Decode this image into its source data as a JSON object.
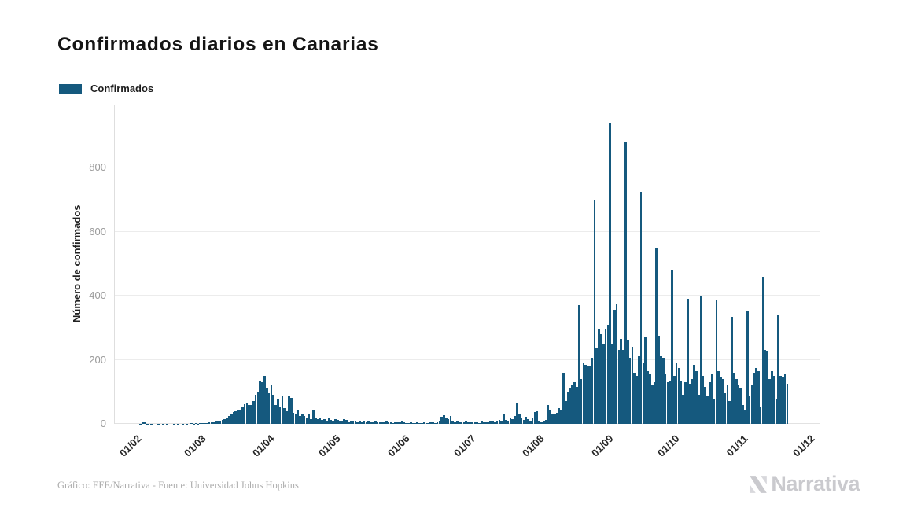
{
  "title": "Confirmados diarios en Canarias",
  "legend": {
    "label": "Confirmados",
    "color": "#15597e"
  },
  "footer": "Gráfico: EFE/Narrativa - Fuente: Universidad Johns Hopkins",
  "logo_text": "Narrativa",
  "chart_data": {
    "type": "bar",
    "title": "Confirmados diarios en Canarias",
    "ylabel": "Número de confirmados",
    "xlabel": "",
    "series_name": "Confirmados",
    "bar_color": "#15597e",
    "grid": "horizontal",
    "legend_position": "top-left",
    "y_ticks": [
      0,
      200,
      400,
      600,
      800
    ],
    "ylim": [
      0,
      960
    ],
    "x_tick_labels": [
      "01/02",
      "01/03",
      "01/04",
      "01/05",
      "01/06",
      "01/07",
      "01/08",
      "01/09",
      "01/10",
      "01/11",
      "01/12"
    ],
    "month_start_indices": [
      0,
      29,
      60,
      90,
      121,
      151,
      182,
      213,
      243,
      274,
      304
    ],
    "start_label": "01/02/2020",
    "values": [
      0,
      1,
      4,
      4,
      1,
      0,
      1,
      0,
      0,
      1,
      0,
      1,
      0,
      1,
      0,
      0,
      1,
      0,
      1,
      0,
      1,
      0,
      1,
      0,
      2,
      1,
      2,
      1,
      2,
      2,
      3,
      2,
      4,
      5,
      6,
      8,
      10,
      9,
      12,
      15,
      20,
      24,
      30,
      36,
      40,
      45,
      42,
      55,
      62,
      66,
      60,
      58,
      72,
      90,
      100,
      135,
      130,
      150,
      110,
      95,
      122,
      90,
      60,
      75,
      55,
      85,
      50,
      40,
      85,
      80,
      35,
      30,
      45,
      25,
      30,
      25,
      20,
      30,
      15,
      45,
      20,
      15,
      20,
      12,
      15,
      10,
      18,
      12,
      10,
      15,
      12,
      10,
      8,
      14,
      12,
      6,
      8,
      10,
      7,
      5,
      8,
      6,
      9,
      5,
      7,
      4,
      6,
      8,
      5,
      6,
      4,
      5,
      7,
      4,
      5,
      3,
      6,
      4,
      5,
      8,
      6,
      3,
      2,
      4,
      2,
      3,
      5,
      3,
      2,
      4,
      3,
      2,
      5,
      4,
      3,
      6,
      8,
      22,
      28,
      20,
      15,
      25,
      10,
      6,
      8,
      5,
      4,
      6,
      8,
      5,
      4,
      5,
      4,
      6,
      3,
      8,
      5,
      4,
      6,
      10,
      8,
      6,
      9,
      12,
      10,
      29,
      12,
      10,
      20,
      14,
      25,
      65,
      30,
      18,
      12,
      22,
      15,
      10,
      20,
      38,
      40,
      8,
      5,
      8,
      12,
      60,
      45,
      30,
      32,
      35,
      48,
      45,
      160,
      70,
      98,
      111,
      123,
      130,
      115,
      370,
      140,
      190,
      185,
      182,
      178,
      205,
      700,
      235,
      295,
      280,
      250,
      295,
      310,
      940,
      250,
      355,
      375,
      230,
      265,
      230,
      880,
      260,
      205,
      240,
      160,
      150,
      210,
      725,
      190,
      270,
      165,
      155,
      120,
      130,
      550,
      275,
      210,
      205,
      155,
      130,
      135,
      480,
      150,
      190,
      175,
      135,
      90,
      130,
      390,
      125,
      140,
      185,
      165,
      90,
      400,
      150,
      115,
      85,
      130,
      155,
      75,
      385,
      165,
      145,
      140,
      95,
      120,
      70,
      335,
      160,
      140,
      120,
      110,
      60,
      45,
      350,
      85,
      120,
      160,
      175,
      165,
      55,
      460,
      230,
      225,
      140,
      165,
      150,
      75,
      340,
      150,
      145,
      155,
      125
    ]
  }
}
